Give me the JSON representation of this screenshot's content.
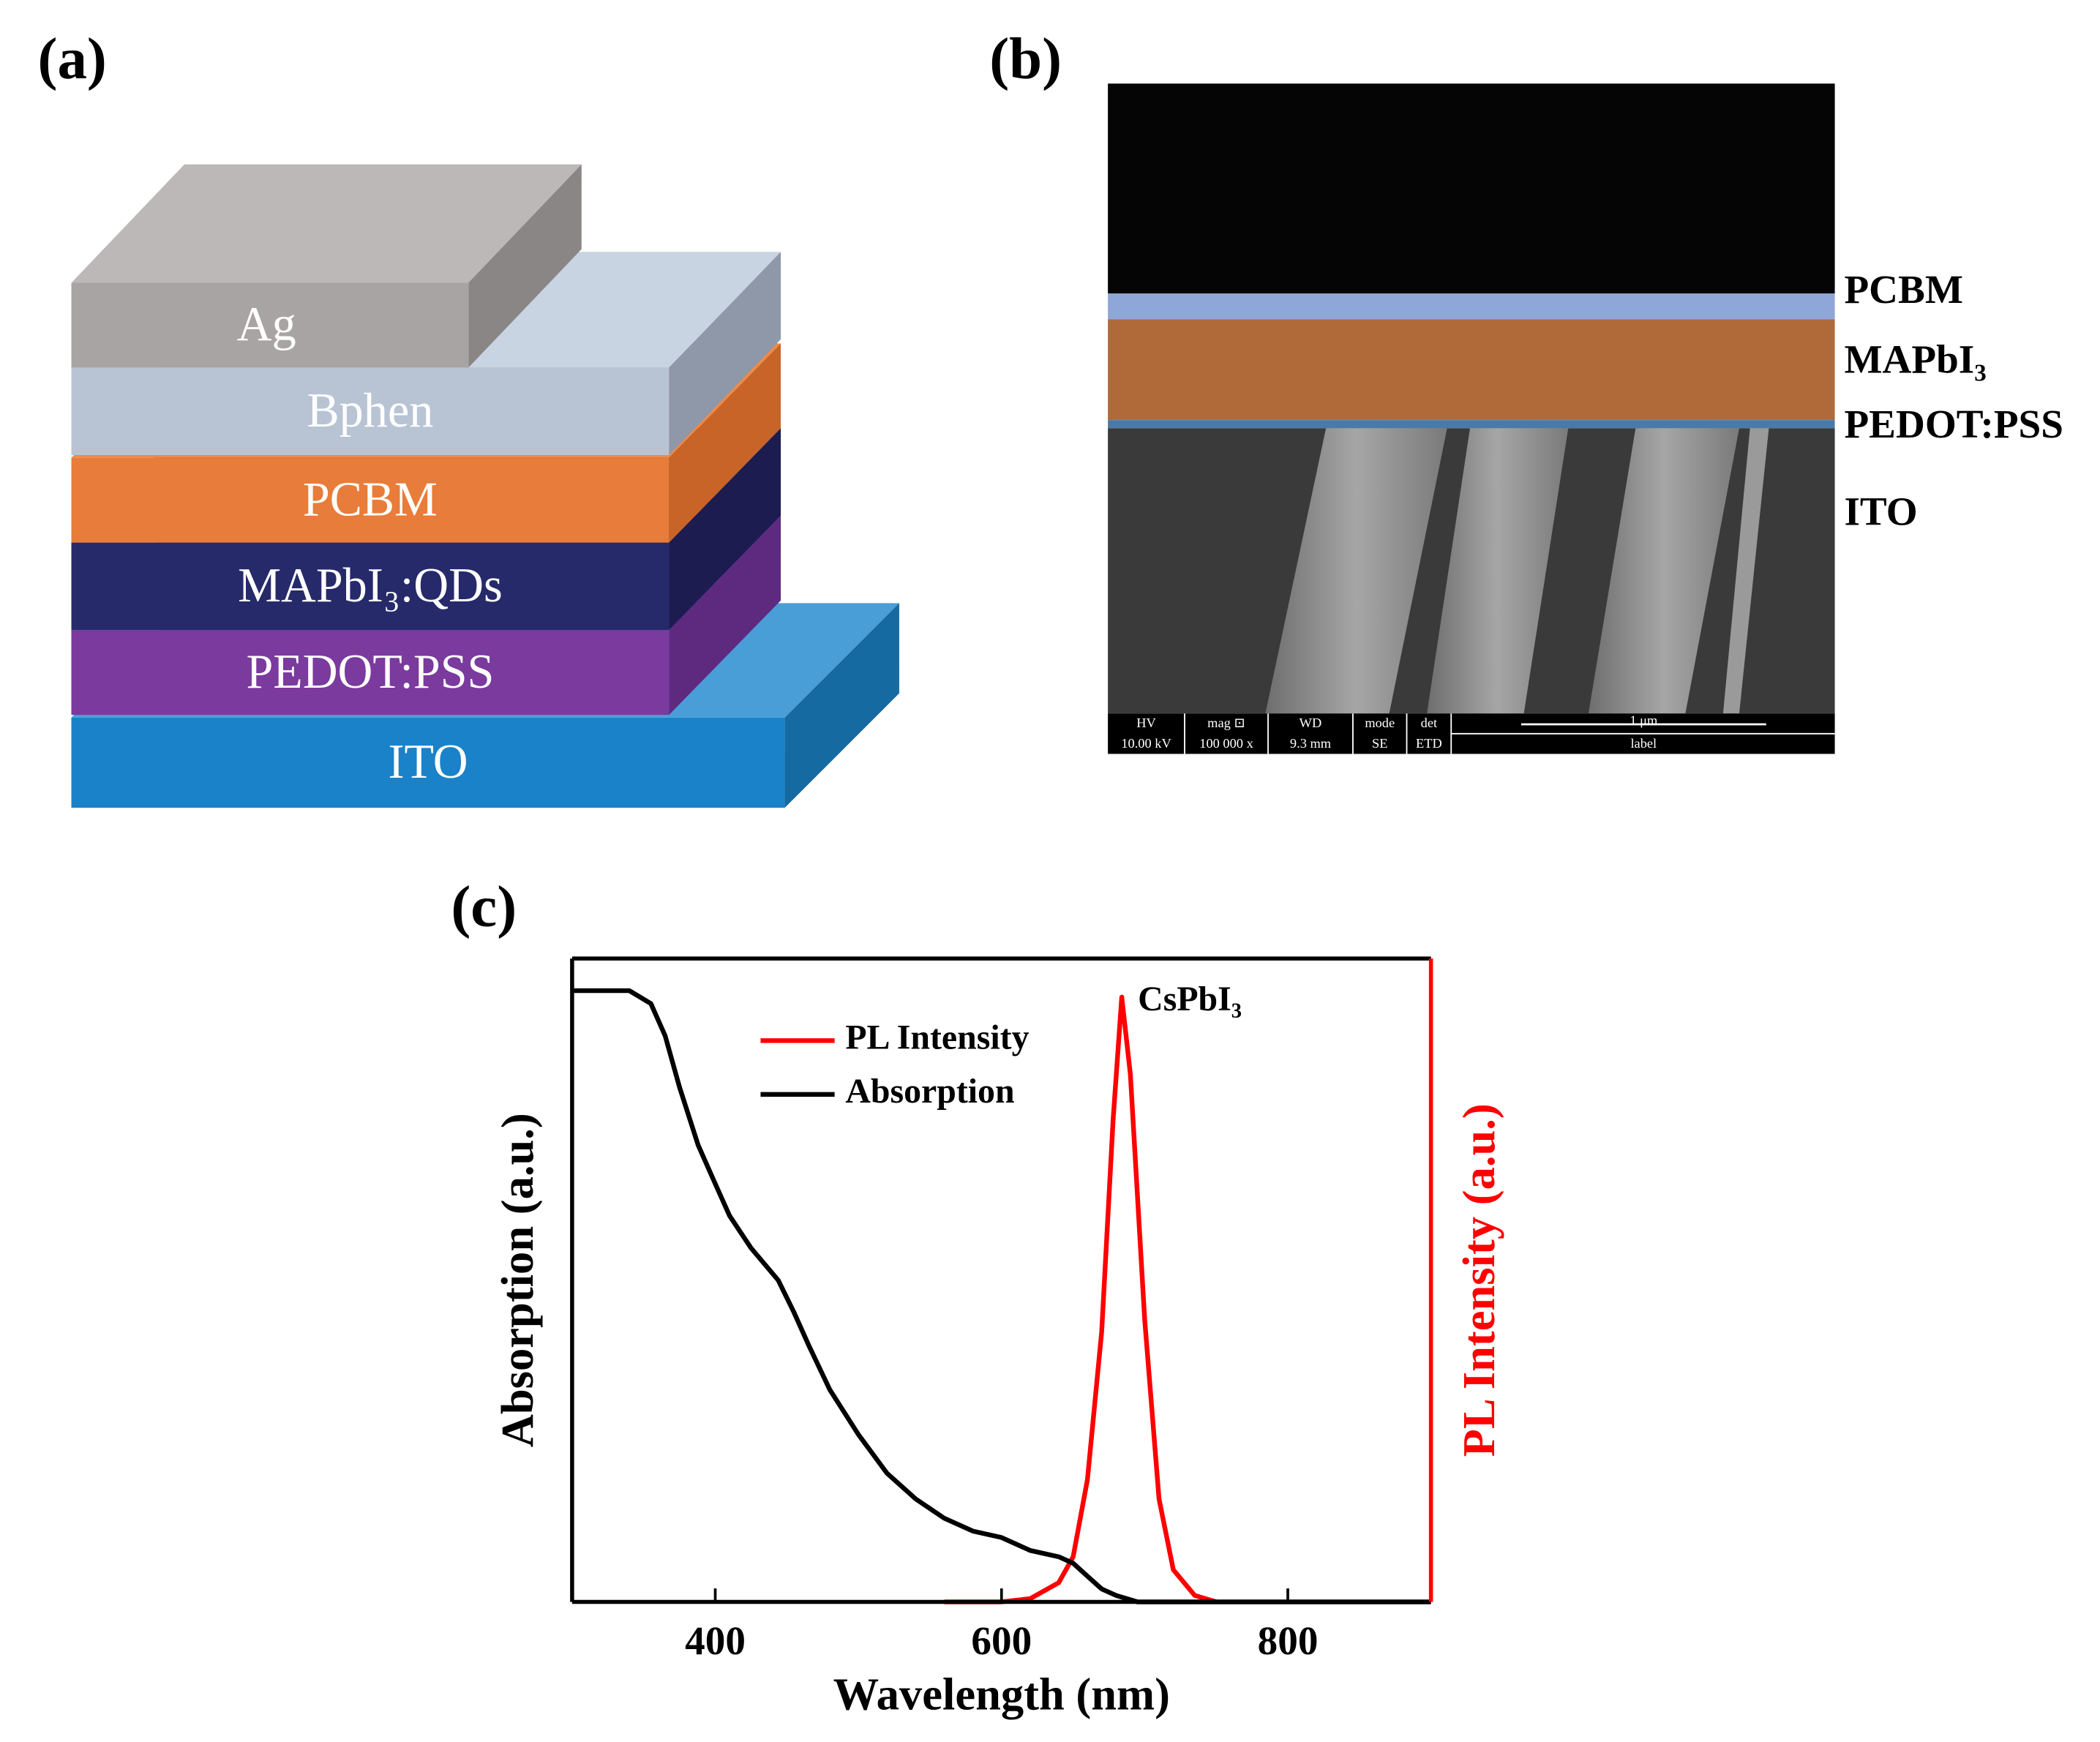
{
  "panel_labels": [
    "(a)",
    "(b)",
    "(c)"
  ],
  "device_layers": [
    "ITO",
    "PEDOT:PSS",
    "MAPbI₃:QDs",
    "PCBM",
    "Bphen",
    "Ag"
  ],
  "sem": {
    "layers": [
      "PCBM",
      "MAPbI₃",
      "PEDOT:PSS",
      "ITO"
    ],
    "databar": {
      "row1": [
        "HV",
        "mag ⊡",
        "WD",
        "mode",
        "det"
      ],
      "row2": [
        "10.00 kV",
        "100 000 x",
        "9.3 mm",
        "SE",
        "ETD"
      ],
      "scale": "1 μm",
      "label": "label"
    }
  },
  "chart_data": {
    "type": "line",
    "xlabel": "Wavelength (nm)",
    "ylabel": "Absorption (a.u.)",
    "y2label": "PL Intensity (a.u.)",
    "annotation": "CsPbI₃",
    "xlim": [
      300,
      900
    ],
    "xticks": [
      400,
      600,
      800
    ],
    "ylim": [
      0,
      1
    ],
    "y2lim": [
      0,
      1
    ],
    "legend": "upper center",
    "series": [
      {
        "name": "PL Intensity",
        "color": "#ff0000",
        "axis": "y2",
        "x": [
          560,
          600,
          620,
          640,
          650,
          660,
          670,
          678,
          684,
          690,
          700,
          710,
          720,
          735,
          750
        ],
        "values": [
          0,
          0,
          0.005,
          0.03,
          0.07,
          0.19,
          0.42,
          0.75,
          0.94,
          0.82,
          0.44,
          0.16,
          0.05,
          0.01,
          0
        ]
      },
      {
        "name": "Absorption",
        "color": "#000000",
        "axis": "y",
        "x": [
          300,
          340,
          355,
          365,
          375,
          388,
          400,
          410,
          425,
          444,
          455,
          465,
          480,
          500,
          520,
          540,
          560,
          580,
          600,
          620,
          640,
          650,
          660,
          670,
          680,
          695,
          750,
          900
        ],
        "values": [
          0.95,
          0.95,
          0.93,
          0.88,
          0.8,
          0.71,
          0.65,
          0.6,
          0.55,
          0.5,
          0.45,
          0.4,
          0.33,
          0.26,
          0.2,
          0.16,
          0.13,
          0.11,
          0.1,
          0.08,
          0.07,
          0.06,
          0.04,
          0.02,
          0.01,
          0,
          0,
          0
        ]
      }
    ]
  }
}
